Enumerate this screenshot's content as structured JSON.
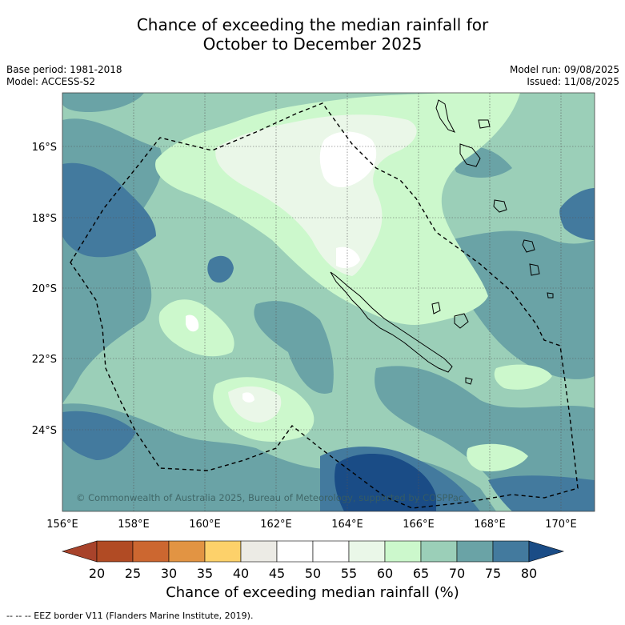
{
  "title": {
    "line1": "Chance of exceeding the median rainfall for",
    "line2": "October to December 2025"
  },
  "meta": {
    "base_period": "Base period: 1981-2018",
    "model": "Model: ACCESS-S2",
    "model_run": "Model run: 09/08/2025",
    "issued": "Issued: 11/08/2025"
  },
  "map": {
    "lon_labels": [
      "156°E",
      "158°E",
      "160°E",
      "162°E",
      "164°E",
      "166°E",
      "168°E",
      "170°E"
    ],
    "lat_labels": [
      "16°S",
      "18°S",
      "20°S",
      "22°S",
      "24°S"
    ],
    "copyright": "© Commonwealth of Australia 2025, Bureau of Meteorology, supported by COSPPac"
  },
  "colorbar": {
    "ticks": [
      "20",
      "25",
      "30",
      "35",
      "40",
      "45",
      "50",
      "55",
      "60",
      "65",
      "70",
      "75",
      "80"
    ],
    "colors": [
      "#a8432b",
      "#b14b24",
      "#cc6730",
      "#e29443",
      "#fdd16a",
      "#ecebe5",
      "#ffffff",
      "#ffffff",
      "#eaf7e8",
      "#ccf8cc",
      "#9bcfb8",
      "#6aa3a6",
      "#437a9e",
      "#1a4c86"
    ],
    "label": "Chance of exceeding median rainfall (%)"
  },
  "footer": {
    "eez_legend": "-- -- -- EEZ border V11 (Flanders Marine Institute, 2019)."
  }
}
